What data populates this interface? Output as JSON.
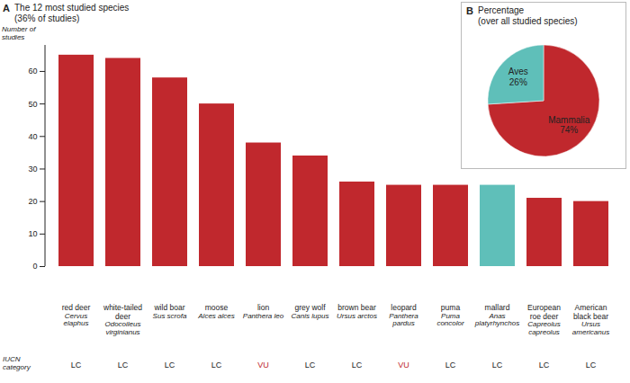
{
  "chart_data": [
    {
      "type": "bar",
      "panel": "A",
      "title": "The 12 most studied species",
      "subtitle": "(36% of studies)",
      "ylabel": "Number of studies",
      "categories": [
        "red deer",
        "white-tailed deer",
        "wild boar",
        "moose",
        "lion",
        "grey wolf",
        "brown bear",
        "leopard",
        "puma",
        "mallard",
        "European roe deer",
        "American black bear"
      ],
      "scientific_names": [
        "Cervus elaphus",
        "Odocoileus virginianus",
        "Sus scrofa",
        "Alces alces",
        "Panthera leo",
        "Canis lupus",
        "Ursus arctos",
        "Panthera pardus",
        "Puma concolor",
        "Anas platyrhynchos",
        "Capreolus capreolus",
        "Ursus americanus"
      ],
      "values": [
        65,
        64,
        58,
        50,
        38,
        34,
        26,
        25,
        25,
        25,
        21,
        20
      ],
      "colors": [
        "#c0282d",
        "#c0282d",
        "#c0282d",
        "#c0282d",
        "#c0282d",
        "#c0282d",
        "#c0282d",
        "#c0282d",
        "#c0282d",
        "#5fbfb9",
        "#c0282d",
        "#c0282d"
      ],
      "ylim": [
        0,
        68
      ],
      "yticks": [
        0,
        10,
        20,
        30,
        40,
        50,
        60
      ],
      "grid": false,
      "iucn_label": "IUCN category",
      "iucn_categories": [
        "LC",
        "LC",
        "LC",
        "LC",
        "VU",
        "LC",
        "LC",
        "VU",
        "LC",
        "LC",
        "LC",
        "LC"
      ],
      "iucn_colors": [
        "#222222",
        "#222222",
        "#222222",
        "#222222",
        "#c0282d",
        "#222222",
        "#222222",
        "#c0282d",
        "#222222",
        "#222222",
        "#222222",
        "#222222"
      ]
    },
    {
      "type": "pie",
      "panel": "B",
      "title": "Percentage",
      "subtitle": "(over all studied species)",
      "categories": [
        "Mammalia",
        "Aves"
      ],
      "values": [
        74,
        26
      ],
      "value_labels": [
        "74%",
        "26%"
      ],
      "colors": [
        "#c0282d",
        "#5fbfb9"
      ]
    }
  ]
}
